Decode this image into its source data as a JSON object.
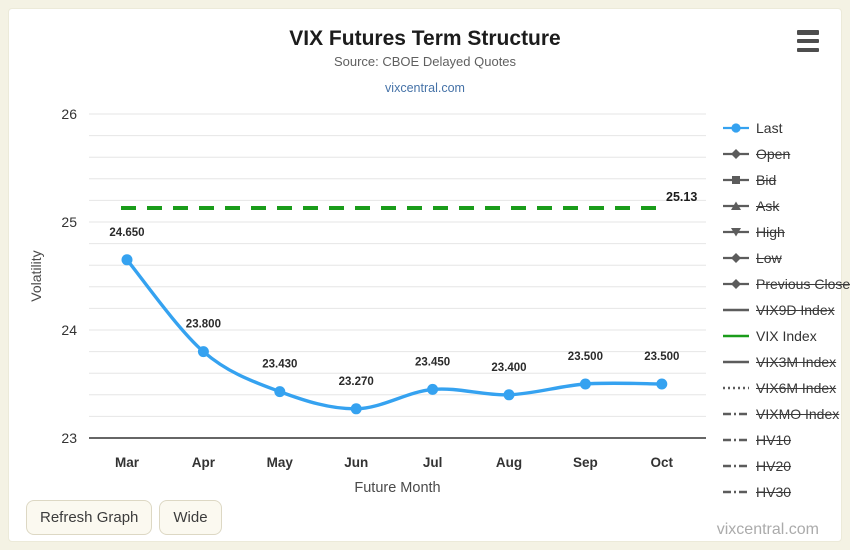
{
  "header": {
    "title": "VIX Futures Term Structure",
    "subtitle": "Source: CBOE Delayed Quotes",
    "link": "vixcentral.com"
  },
  "chart_data": {
    "type": "line",
    "title": "VIX Futures Term Structure",
    "subtitle": "Source: CBOE Delayed Quotes",
    "xlabel": "Future Month",
    "ylabel": "Volatility",
    "ylim": [
      23,
      26
    ],
    "yticks": [
      23,
      24,
      25,
      26
    ],
    "minor_grid_step": 0.2,
    "grid": true,
    "legend_position": "right",
    "categories": [
      "Mar",
      "Apr",
      "May",
      "Jun",
      "Jul",
      "Aug",
      "Sep",
      "Oct"
    ],
    "series": [
      {
        "name": "Last",
        "type": "spline",
        "color": "#35a2f0",
        "values": [
          24.65,
          23.8,
          23.43,
          23.27,
          23.45,
          23.4,
          23.5,
          23.5
        ],
        "labels": [
          "24.650",
          "23.800",
          "23.430",
          "23.270",
          "23.450",
          "23.400",
          "23.500",
          "23.500"
        ]
      },
      {
        "name": "VIX Index",
        "type": "hline",
        "style": "dashed",
        "color": "#1a9c1a",
        "value": 25.13,
        "label": "25.13"
      }
    ]
  },
  "legend": {
    "items": [
      {
        "label": "Last",
        "marker": "circle",
        "line": "solid",
        "color": "#35a2f0",
        "active": true
      },
      {
        "label": "Open",
        "marker": "diamond",
        "line": "solid",
        "color": "#5c5c5c",
        "active": false
      },
      {
        "label": "Bid",
        "marker": "square",
        "line": "solid",
        "color": "#5c5c5c",
        "active": false
      },
      {
        "label": "Ask",
        "marker": "triangle-up",
        "line": "solid",
        "color": "#5c5c5c",
        "active": false
      },
      {
        "label": "High",
        "marker": "triangle-down",
        "line": "solid",
        "color": "#5c5c5c",
        "active": false
      },
      {
        "label": "Low",
        "marker": "diamond",
        "line": "solid",
        "color": "#5c5c5c",
        "active": false
      },
      {
        "label": "Previous Close",
        "marker": "diamond",
        "line": "solid",
        "color": "#5c5c5c",
        "active": false
      },
      {
        "label": "VIX9D Index",
        "marker": "none",
        "line": "solid",
        "color": "#5c5c5c",
        "active": false
      },
      {
        "label": "VIX Index",
        "marker": "none",
        "line": "solid",
        "color": "#1a9c1a",
        "active": true
      },
      {
        "label": "VIX3M Index",
        "marker": "none",
        "line": "solid",
        "color": "#5c5c5c",
        "active": false
      },
      {
        "label": "VIX6M Index",
        "marker": "none",
        "line": "dotted",
        "color": "#5c5c5c",
        "active": false
      },
      {
        "label": "VIXMO Index",
        "marker": "none",
        "line": "dashdot",
        "color": "#5c5c5c",
        "active": false
      },
      {
        "label": "HV10",
        "marker": "none",
        "line": "dashdot",
        "color": "#5c5c5c",
        "active": false
      },
      {
        "label": "HV20",
        "marker": "none",
        "line": "dashdot",
        "color": "#5c5c5c",
        "active": false
      },
      {
        "label": "HV30",
        "marker": "none",
        "line": "dashdot",
        "color": "#5c5c5c",
        "active": false
      }
    ]
  },
  "footer": {
    "refresh_button": "Refresh Graph",
    "wide_button": "Wide",
    "watermark": "vixcentral.com"
  },
  "colors": {
    "background": "#f4f2e4",
    "card": "#ffffff",
    "gridline": "#e6e6e6",
    "axis_line": "#333333",
    "series_last": "#35a2f0",
    "vix_index_line": "#1a9c1a",
    "link": "#4572a7"
  }
}
